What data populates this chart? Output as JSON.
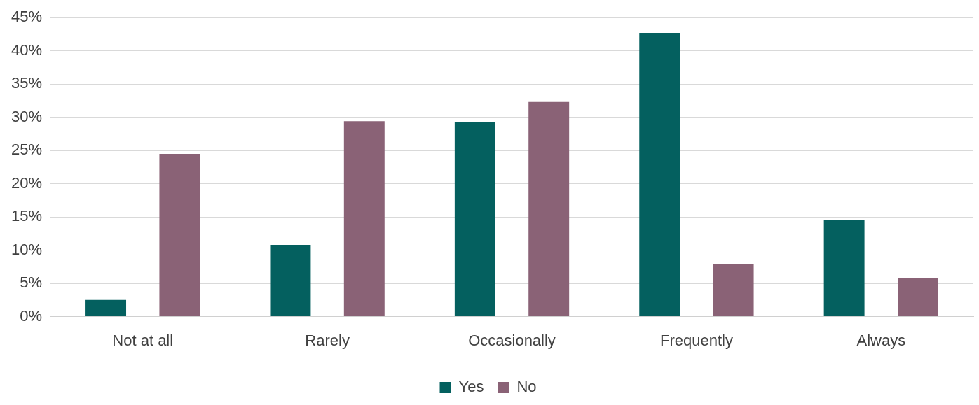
{
  "chart_data": {
    "type": "bar",
    "categories": [
      "Not at all",
      "Rarely",
      "Occasionally",
      "Frequently",
      "Always"
    ],
    "series": [
      {
        "name": "Yes",
        "color": "#04605f",
        "values": [
          2.5,
          10.8,
          29.3,
          42.7,
          14.6
        ]
      },
      {
        "name": "No",
        "color": "#8a6276",
        "values": [
          24.5,
          29.4,
          32.3,
          7.9,
          5.8
        ]
      }
    ],
    "ylim": [
      0,
      45
    ],
    "yticks": [
      {
        "value": 0,
        "label": "0%"
      },
      {
        "value": 5,
        "label": "5%"
      },
      {
        "value": 10,
        "label": "10%"
      },
      {
        "value": 15,
        "label": "15%"
      },
      {
        "value": 20,
        "label": "20%"
      },
      {
        "value": 25,
        "label": "25%"
      },
      {
        "value": 30,
        "label": "30%"
      },
      {
        "value": 35,
        "label": "35%"
      },
      {
        "value": 40,
        "label": "40%"
      },
      {
        "value": 45,
        "label": "45%"
      }
    ],
    "grid": "y",
    "legend": "bottom"
  }
}
